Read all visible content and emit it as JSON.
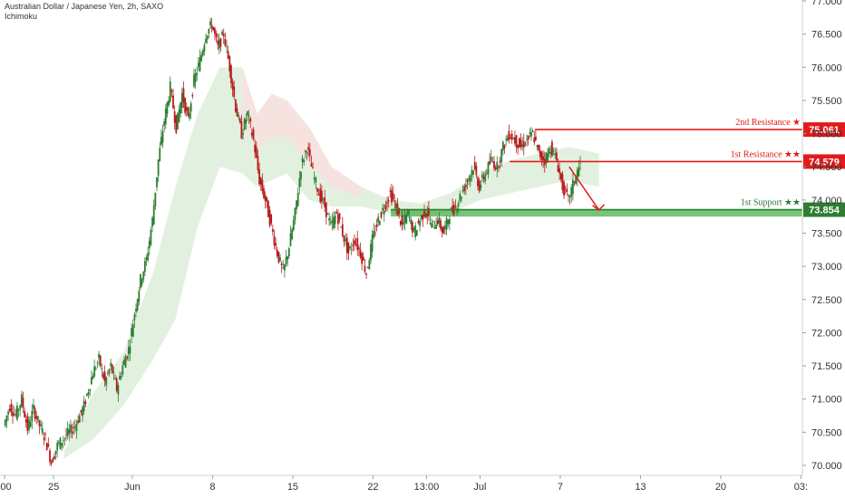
{
  "header": {
    "title": "Australian Dollar / Japanese Yen, 2h, SAXO",
    "indicator": "Ichimoku"
  },
  "colors": {
    "up": "#2e7d32",
    "down": "#b71c1c",
    "resistance": "#e01b1b",
    "support": "#2e7d32",
    "cloud_green": "#dff0dc",
    "cloud_red": "#fbdede"
  },
  "chart_data": {
    "type": "candlestick",
    "title": "Australian Dollar / Japanese Yen, 2h, SAXO",
    "ylim": [
      69.85,
      77.0
    ],
    "grid": false,
    "y_ticks": [
      "70.000",
      "70.500",
      "71.000",
      "71.500",
      "72.000",
      "72.500",
      "73.000",
      "73.500",
      "74.000",
      "74.500",
      "75.000",
      "75.500",
      "76.000",
      "76.500",
      "77.000"
    ],
    "y_tick_values": [
      70.0,
      70.5,
      71.0,
      71.5,
      72.0,
      72.5,
      73.0,
      73.5,
      74.0,
      74.5,
      75.0,
      75.5,
      76.0,
      76.5,
      77.0
    ],
    "x_ticks": [
      ":00",
      "25",
      "Jun",
      "8",
      "15",
      "22",
      "13:00",
      "Jul",
      "7",
      "13",
      "20",
      "03:"
    ],
    "x_tick_index": [
      0,
      33,
      86,
      140,
      194,
      248,
      284,
      320,
      374,
      428,
      482,
      536
    ],
    "x_index_range": [
      0,
      540
    ],
    "price_path": [
      [
        0,
        70.6
      ],
      [
        4,
        70.9
      ],
      [
        8,
        70.75
      ],
      [
        12,
        71.0
      ],
      [
        16,
        70.55
      ],
      [
        20,
        70.85
      ],
      [
        24,
        70.6
      ],
      [
        28,
        70.4
      ],
      [
        32,
        70.05
      ],
      [
        36,
        70.3
      ],
      [
        42,
        70.45
      ],
      [
        48,
        70.6
      ],
      [
        54,
        70.9
      ],
      [
        60,
        71.4
      ],
      [
        64,
        71.6
      ],
      [
        68,
        71.25
      ],
      [
        72,
        71.5
      ],
      [
        76,
        71.15
      ],
      [
        80,
        71.5
      ],
      [
        84,
        71.75
      ],
      [
        88,
        72.3
      ],
      [
        92,
        72.8
      ],
      [
        96,
        73.1
      ],
      [
        100,
        73.7
      ],
      [
        104,
        74.6
      ],
      [
        108,
        75.2
      ],
      [
        112,
        75.7
      ],
      [
        116,
        75.1
      ],
      [
        120,
        75.6
      ],
      [
        124,
        75.2
      ],
      [
        128,
        75.8
      ],
      [
        132,
        76.1
      ],
      [
        136,
        76.5
      ],
      [
        140,
        76.65
      ],
      [
        144,
        76.3
      ],
      [
        148,
        76.5
      ],
      [
        152,
        76.0
      ],
      [
        156,
        75.4
      ],
      [
        160,
        75.0
      ],
      [
        164,
        75.3
      ],
      [
        168,
        74.9
      ],
      [
        172,
        74.3
      ],
      [
        176,
        74.0
      ],
      [
        180,
        73.6
      ],
      [
        184,
        73.2
      ],
      [
        188,
        72.9
      ],
      [
        192,
        73.3
      ],
      [
        196,
        73.8
      ],
      [
        200,
        74.5
      ],
      [
        204,
        74.8
      ],
      [
        208,
        74.4
      ],
      [
        212,
        74.1
      ],
      [
        216,
        73.9
      ],
      [
        220,
        73.6
      ],
      [
        224,
        73.8
      ],
      [
        228,
        73.5
      ],
      [
        232,
        73.2
      ],
      [
        236,
        73.4
      ],
      [
        240,
        73.2
      ],
      [
        244,
        72.9
      ],
      [
        248,
        73.4
      ],
      [
        252,
        73.7
      ],
      [
        256,
        73.9
      ],
      [
        260,
        74.1
      ],
      [
        264,
        73.9
      ],
      [
        268,
        73.6
      ],
      [
        272,
        73.8
      ],
      [
        276,
        73.5
      ],
      [
        280,
        73.7
      ],
      [
        284,
        73.85
      ],
      [
        288,
        73.6
      ],
      [
        292,
        73.7
      ],
      [
        296,
        73.5
      ],
      [
        300,
        73.8
      ],
      [
        304,
        73.9
      ],
      [
        308,
        74.1
      ],
      [
        312,
        74.3
      ],
      [
        316,
        74.5
      ],
      [
        320,
        74.2
      ],
      [
        324,
        74.4
      ],
      [
        328,
        74.6
      ],
      [
        332,
        74.5
      ],
      [
        336,
        74.8
      ],
      [
        340,
        75.0
      ],
      [
        344,
        74.9
      ],
      [
        348,
        74.8
      ],
      [
        352,
        74.9
      ],
      [
        356,
        75.0
      ],
      [
        360,
        74.7
      ],
      [
        364,
        74.6
      ],
      [
        368,
        74.8
      ],
      [
        372,
        74.6
      ],
      [
        376,
        74.2
      ],
      [
        380,
        74.0
      ],
      [
        384,
        74.3
      ],
      [
        388,
        74.55
      ]
    ],
    "cloud": [
      [
        40,
        70.1,
        70.2
      ],
      [
        60,
        70.4,
        71.1
      ],
      [
        80,
        70.9,
        71.7
      ],
      [
        100,
        71.6,
        72.9
      ],
      [
        115,
        72.2,
        74.2
      ],
      [
        130,
        73.6,
        75.3
      ],
      [
        145,
        74.5,
        76.0
      ],
      [
        160,
        74.4,
        76.0
      ],
      [
        170,
        74.2,
        75.3
      ],
      [
        180,
        74.3,
        75.6
      ],
      [
        190,
        74.4,
        75.5
      ],
      [
        205,
        74.0,
        75.1
      ],
      [
        220,
        73.9,
        74.5
      ],
      [
        240,
        73.9,
        74.2
      ],
      [
        260,
        73.8,
        74.0
      ],
      [
        280,
        73.75,
        73.95
      ],
      [
        300,
        73.8,
        74.1
      ],
      [
        320,
        74.0,
        74.4
      ],
      [
        340,
        74.1,
        74.6
      ],
      [
        360,
        74.2,
        74.7
      ],
      [
        380,
        74.3,
        74.8
      ],
      [
        400,
        74.2,
        74.7
      ]
    ],
    "levels": [
      {
        "label": "2nd Resistance",
        "stars": "★",
        "value": "75.061",
        "price": 75.061,
        "kind": "resistance",
        "from_index": 357
      },
      {
        "label": "1st Resistance",
        "stars": "★★",
        "value": "74.579",
        "price": 74.579,
        "kind": "resistance",
        "from_index": 340
      },
      {
        "label": "1st Support",
        "stars": "★★",
        "value": "73.854",
        "price": 73.854,
        "kind": "support",
        "from_index": 260
      }
    ],
    "support_zone": [
      73.75,
      73.854
    ],
    "projection": {
      "from_index": 380,
      "from_price": 74.5,
      "to_index": 400,
      "to_price": 73.85
    }
  }
}
